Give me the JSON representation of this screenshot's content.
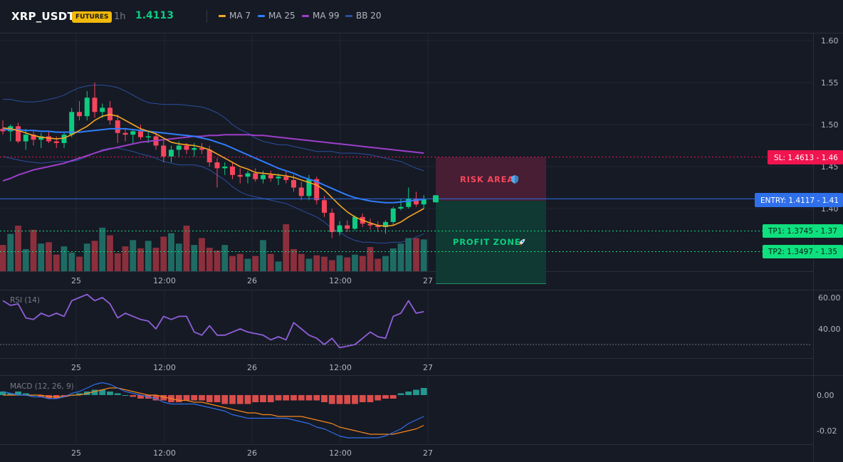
{
  "header": {
    "symbol": "XRP_USDT",
    "badge": "FUTURES",
    "timeframe": "1h",
    "price": "1.4113",
    "legend": [
      {
        "label": "MA 7",
        "color": "#f5a623"
      },
      {
        "label": "MA 25",
        "color": "#2f7dfa"
      },
      {
        "label": "MA 99",
        "color": "#9c3fc9"
      },
      {
        "label": "BB 20",
        "color": "#2a4f9e"
      }
    ]
  },
  "colors": {
    "up": "#0ecb81",
    "down": "#f6465d",
    "vol_up": "#1f6b63",
    "vol_down": "#8c2f3c",
    "background": "#161a25",
    "grid": "#232735"
  },
  "overlays": {
    "risk_label": "RISK AREA",
    "profit_label": "PROFIT ZONE",
    "risk_icon": "shield-icon",
    "profit_icon": "rocket-icon",
    "sl_label": "SL: 1.4613 - 1.46",
    "entry_label": "ENTRY: 1.4117 - 1.41",
    "tp1_label": "TP1: 1.3745 - 1.37",
    "tp2_label": "TP2: 1.3497 - 1.35"
  },
  "chart_data": [
    {
      "type": "candlestick",
      "title": "XRP_USDT",
      "x_ticks": [
        "25",
        "12:00",
        "26",
        "12:00",
        "27"
      ],
      "y_ticks": [
        "1.60",
        "1.55",
        "1.50",
        "1.45",
        "1.40"
      ],
      "ylim": [
        1.39,
        1.61
      ],
      "levels": {
        "sl": 1.4613,
        "entry": 1.4117,
        "tp1": 1.3745,
        "tp2": 1.3497
      },
      "candles": [
        [
          1.495,
          1.505,
          1.488,
          1.492
        ],
        [
          1.492,
          1.5,
          1.48,
          1.498
        ],
        [
          1.498,
          1.502,
          1.478,
          1.48
        ],
        [
          1.48,
          1.495,
          1.47,
          1.488
        ],
        [
          1.488,
          1.492,
          1.475,
          1.482
        ],
        [
          1.482,
          1.49,
          1.472,
          1.486
        ],
        [
          1.486,
          1.492,
          1.478,
          1.48
        ],
        [
          1.48,
          1.486,
          1.472,
          1.478
        ],
        [
          1.478,
          1.49,
          1.472,
          1.488
        ],
        [
          1.488,
          1.52,
          1.485,
          1.515
        ],
        [
          1.515,
          1.528,
          1.505,
          1.51
        ],
        [
          1.51,
          1.54,
          1.505,
          1.532
        ],
        [
          1.532,
          1.55,
          1.508,
          1.515
        ],
        [
          1.515,
          1.525,
          1.508,
          1.52
        ],
        [
          1.52,
          1.528,
          1.5,
          1.505
        ],
        [
          1.505,
          1.512,
          1.478,
          1.49
        ],
        [
          1.49,
          1.496,
          1.48,
          1.488
        ],
        [
          1.488,
          1.495,
          1.478,
          1.492
        ],
        [
          1.492,
          1.5,
          1.482,
          1.485
        ],
        [
          1.485,
          1.492,
          1.478,
          1.486
        ],
        [
          1.486,
          1.49,
          1.47,
          1.475
        ],
        [
          1.475,
          1.482,
          1.455,
          1.462
        ],
        [
          1.462,
          1.475,
          1.455,
          1.47
        ],
        [
          1.47,
          1.48,
          1.462,
          1.475
        ],
        [
          1.475,
          1.478,
          1.465,
          1.47
        ],
        [
          1.47,
          1.478,
          1.462,
          1.472
        ],
        [
          1.472,
          1.478,
          1.465,
          1.47
        ],
        [
          1.47,
          1.475,
          1.45,
          1.455
        ],
        [
          1.455,
          1.46,
          1.425,
          1.448
        ],
        [
          1.448,
          1.455,
          1.44,
          1.45
        ],
        [
          1.45,
          1.455,
          1.435,
          1.44
        ],
        [
          1.44,
          1.448,
          1.43,
          1.438
        ],
        [
          1.438,
          1.445,
          1.43,
          1.442
        ],
        [
          1.442,
          1.448,
          1.432,
          1.435
        ],
        [
          1.435,
          1.445,
          1.43,
          1.44
        ],
        [
          1.44,
          1.445,
          1.432,
          1.436
        ],
        [
          1.436,
          1.442,
          1.428,
          1.438
        ],
        [
          1.438,
          1.445,
          1.43,
          1.434
        ],
        [
          1.434,
          1.44,
          1.42,
          1.425
        ],
        [
          1.425,
          1.432,
          1.41,
          1.415
        ],
        [
          1.415,
          1.44,
          1.41,
          1.435
        ],
        [
          1.435,
          1.438,
          1.405,
          1.41
        ],
        [
          1.41,
          1.415,
          1.39,
          1.395
        ],
        [
          1.395,
          1.4,
          1.365,
          1.372
        ],
        [
          1.372,
          1.385,
          1.368,
          1.38
        ],
        [
          1.38,
          1.386,
          1.372,
          1.376
        ],
        [
          1.376,
          1.392,
          1.374,
          1.39
        ],
        [
          1.39,
          1.394,
          1.378,
          1.382
        ],
        [
          1.382,
          1.388,
          1.375,
          1.38
        ],
        [
          1.38,
          1.385,
          1.372,
          1.378
        ],
        [
          1.378,
          1.386,
          1.37,
          1.384
        ],
        [
          1.384,
          1.402,
          1.38,
          1.4
        ],
        [
          1.4,
          1.412,
          1.398,
          1.402
        ],
        [
          1.402,
          1.425,
          1.4,
          1.412
        ],
        [
          1.412,
          1.42,
          1.402,
          1.405
        ],
        [
          1.405,
          1.416,
          1.4,
          1.411
        ]
      ],
      "volume": [
        38,
        54,
        66,
        32,
        60,
        40,
        42,
        24,
        36,
        27,
        21,
        40,
        44,
        63,
        52,
        26,
        36,
        45,
        33,
        44,
        34,
        50,
        55,
        40,
        66,
        38,
        48,
        34,
        30,
        38,
        22,
        25,
        18,
        22,
        45,
        25,
        14,
        68,
        32,
        25,
        18,
        23,
        21,
        16,
        23,
        20,
        24,
        22,
        35,
        18,
        22,
        33,
        40,
        48,
        48,
        46
      ],
      "ma7": [
        1.496,
        1.495,
        1.493,
        1.49,
        1.487,
        1.485,
        1.484,
        1.483,
        1.484,
        1.488,
        1.493,
        1.498,
        1.505,
        1.51,
        1.512,
        1.51,
        1.505,
        1.5,
        1.495,
        1.492,
        1.489,
        1.484,
        1.479,
        1.477,
        1.476,
        1.475,
        1.473,
        1.47,
        1.465,
        1.46,
        1.455,
        1.45,
        1.447,
        1.443,
        1.442,
        1.441,
        1.44,
        1.439,
        1.437,
        1.434,
        1.431,
        1.428,
        1.422,
        1.413,
        1.404,
        1.396,
        1.39,
        1.386,
        1.383,
        1.38,
        1.379,
        1.38,
        1.384,
        1.39,
        1.395,
        1.4
      ],
      "ma25": [
        1.494,
        1.494,
        1.494,
        1.493,
        1.493,
        1.492,
        1.492,
        1.491,
        1.491,
        1.491,
        1.491,
        1.492,
        1.493,
        1.494,
        1.495,
        1.495,
        1.495,
        1.494,
        1.493,
        1.492,
        1.491,
        1.49,
        1.489,
        1.488,
        1.487,
        1.486,
        1.484,
        1.482,
        1.479,
        1.476,
        1.472,
        1.468,
        1.464,
        1.46,
        1.456,
        1.452,
        1.448,
        1.445,
        1.442,
        1.438,
        1.435,
        1.432,
        1.428,
        1.424,
        1.42,
        1.416,
        1.413,
        1.411,
        1.409,
        1.408,
        1.407,
        1.407,
        1.408,
        1.409,
        1.41,
        1.411
      ],
      "ma99": [
        1.433,
        1.436,
        1.44,
        1.443,
        1.446,
        1.448,
        1.45,
        1.452,
        1.454,
        1.457,
        1.46,
        1.463,
        1.466,
        1.469,
        1.471,
        1.473,
        1.475,
        1.477,
        1.479,
        1.48,
        1.481,
        1.482,
        1.483,
        1.484,
        1.485,
        1.486,
        1.486,
        1.487,
        1.487,
        1.488,
        1.488,
        1.488,
        1.488,
        1.487,
        1.487,
        1.486,
        1.485,
        1.484,
        1.483,
        1.482,
        1.481,
        1.48,
        1.479,
        1.478,
        1.477,
        1.476,
        1.475,
        1.474,
        1.473,
        1.472,
        1.471,
        1.47,
        1.469,
        1.468,
        1.467,
        1.466
      ],
      "bb_upper": [
        1.53,
        1.53,
        1.528,
        1.527,
        1.527,
        1.528,
        1.53,
        1.532,
        1.535,
        1.54,
        1.544,
        1.546,
        1.547,
        1.547,
        1.546,
        1.544,
        1.54,
        1.535,
        1.53,
        1.526,
        1.525,
        1.524,
        1.524,
        1.524,
        1.523,
        1.522,
        1.521,
        1.518,
        1.514,
        1.508,
        1.5,
        1.494,
        1.49,
        1.484,
        1.48,
        1.478,
        1.476,
        1.476,
        1.474,
        1.472,
        1.47,
        1.468,
        1.468,
        1.468,
        1.466,
        1.466,
        1.466,
        1.465,
        1.464,
        1.462,
        1.46,
        1.458,
        1.456,
        1.452,
        1.448,
        1.445
      ],
      "bb_lower": [
        1.462,
        1.46,
        1.458,
        1.456,
        1.455,
        1.454,
        1.455,
        1.456,
        1.456,
        1.456,
        1.458,
        1.462,
        1.466,
        1.47,
        1.472,
        1.472,
        1.47,
        1.468,
        1.465,
        1.463,
        1.46,
        1.456,
        1.454,
        1.452,
        1.452,
        1.452,
        1.45,
        1.446,
        1.44,
        1.434,
        1.426,
        1.42,
        1.416,
        1.414,
        1.412,
        1.41,
        1.408,
        1.406,
        1.402,
        1.398,
        1.394,
        1.39,
        1.384,
        1.376,
        1.372,
        1.366,
        1.362,
        1.36,
        1.36,
        1.359,
        1.359,
        1.36,
        1.36,
        1.362,
        1.366,
        1.37
      ]
    },
    {
      "type": "line",
      "title": "RSI (14)",
      "x_ticks": [
        "25",
        "12:00",
        "26",
        "12:00",
        "27"
      ],
      "y_ticks": [
        "60.00",
        "40.00"
      ],
      "ylim": [
        22,
        68
      ],
      "reference_line": 30,
      "values": [
        58,
        55,
        56,
        47,
        46,
        50,
        48,
        50,
        48,
        58,
        60,
        62,
        58,
        60,
        56,
        47,
        50,
        48,
        46,
        45,
        40,
        48,
        46,
        48,
        48,
        38,
        36,
        42,
        36,
        36,
        38,
        40,
        38,
        37,
        36,
        33,
        35,
        33,
        44,
        40,
        36,
        34,
        30,
        34,
        28,
        29,
        30,
        34,
        38,
        35,
        34,
        48,
        50,
        58,
        50,
        51
      ]
    },
    {
      "type": "bar",
      "title": "MACD (12, 26, 9)",
      "x_ticks": [
        "25",
        "12:00",
        "26",
        "12:00",
        "27"
      ],
      "y_ticks": [
        "0.00",
        "-0.02"
      ],
      "ylim": [
        -0.027,
        0.012
      ],
      "histogram": [
        0.002,
        0.001,
        0.002,
        0.001,
        0.0,
        -0.001,
        -0.002,
        -0.002,
        -0.001,
        0.0,
        0.001,
        0.002,
        0.003,
        0.003,
        0.002,
        0.001,
        0.0,
        -0.001,
        -0.002,
        -0.002,
        -0.003,
        -0.003,
        -0.004,
        -0.004,
        -0.003,
        -0.003,
        -0.003,
        -0.004,
        -0.004,
        -0.005,
        -0.005,
        -0.005,
        -0.005,
        -0.004,
        -0.004,
        -0.004,
        -0.003,
        -0.003,
        -0.003,
        -0.003,
        -0.003,
        -0.003,
        -0.004,
        -0.005,
        -0.005,
        -0.005,
        -0.005,
        -0.004,
        -0.004,
        -0.003,
        -0.002,
        -0.002,
        0.001,
        0.002,
        0.003,
        0.004
      ],
      "macd": [
        0.002,
        0.001,
        0.0,
        0.0,
        -0.001,
        -0.001,
        -0.002,
        -0.002,
        -0.001,
        0.001,
        0.002,
        0.004,
        0.006,
        0.007,
        0.006,
        0.004,
        0.002,
        0.001,
        0.0,
        -0.001,
        -0.002,
        -0.004,
        -0.005,
        -0.005,
        -0.005,
        -0.005,
        -0.006,
        -0.007,
        -0.008,
        -0.009,
        -0.011,
        -0.012,
        -0.013,
        -0.013,
        -0.013,
        -0.013,
        -0.013,
        -0.013,
        -0.014,
        -0.015,
        -0.016,
        -0.018,
        -0.019,
        -0.021,
        -0.023,
        -0.024,
        -0.024,
        -0.024,
        -0.024,
        -0.024,
        -0.023,
        -0.021,
        -0.019,
        -0.016,
        -0.014,
        -0.012
      ],
      "signal": [
        0.0,
        0.0,
        0.0,
        0.0,
        0.0,
        0.0,
        -0.001,
        -0.001,
        -0.001,
        0.0,
        0.0,
        0.001,
        0.002,
        0.003,
        0.004,
        0.004,
        0.003,
        0.002,
        0.001,
        0.0,
        0.0,
        -0.001,
        -0.002,
        -0.003,
        -0.003,
        -0.004,
        -0.004,
        -0.005,
        -0.006,
        -0.007,
        -0.008,
        -0.009,
        -0.01,
        -0.01,
        -0.011,
        -0.011,
        -0.012,
        -0.012,
        -0.012,
        -0.012,
        -0.013,
        -0.014,
        -0.015,
        -0.016,
        -0.018,
        -0.019,
        -0.02,
        -0.021,
        -0.022,
        -0.022,
        -0.022,
        -0.022,
        -0.021,
        -0.02,
        -0.019,
        -0.017
      ]
    }
  ]
}
